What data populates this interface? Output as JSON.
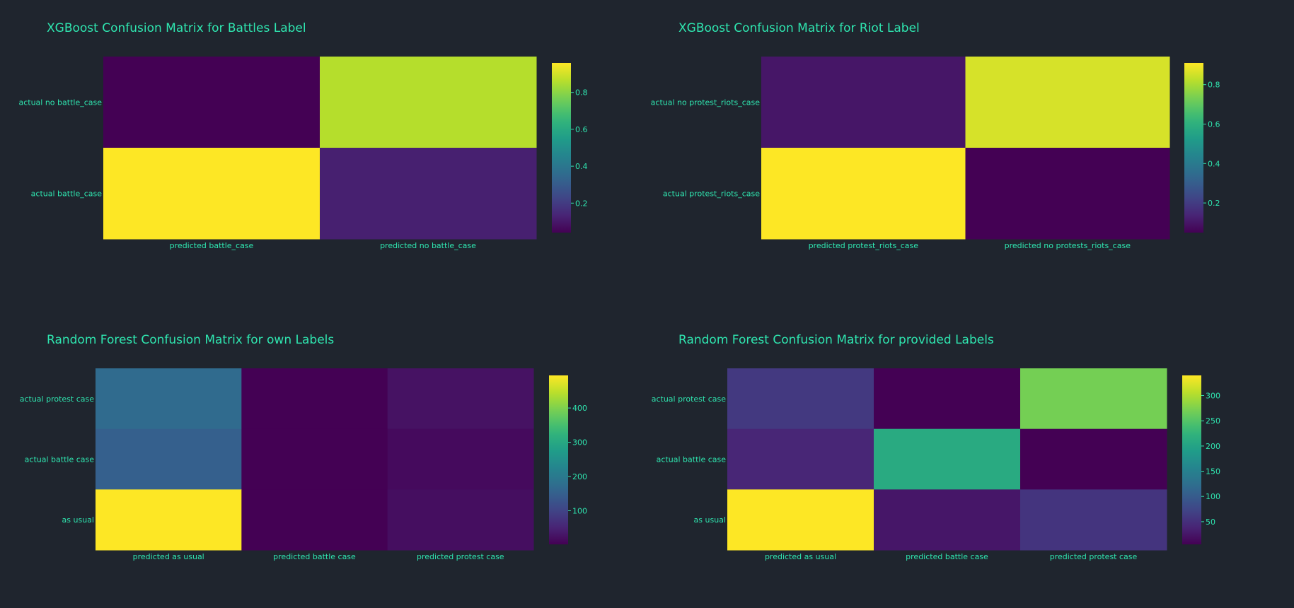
{
  "theme": {
    "background": "#1f252e",
    "text_color": "#2fe6b0",
    "colorscale": "Viridis"
  },
  "chart_data": [
    {
      "type": "heatmap",
      "title": "XGBoost Confusion Matrix for Battles Label",
      "x": [
        "predicted battle_case",
        "predicted no battle_case"
      ],
      "y": [
        "actual no battle_case",
        "actual battle_case"
      ],
      "z": [
        [
          0.04,
          0.86
        ],
        [
          0.96,
          0.12
        ]
      ],
      "zmin": 0.04,
      "zmax": 0.96,
      "colorbar_ticks": [
        0.2,
        0.4,
        0.6,
        0.8
      ],
      "colorbar_ticklabels": [
        "0.2",
        "0.4",
        "0.6",
        "0.8"
      ]
    },
    {
      "type": "heatmap",
      "title": "XGBoost Confusion Matrix for Riot Label",
      "x": [
        "predicted protest_riots_case",
        "predicted no protests_riots_case"
      ],
      "y": [
        "actual no protest_riots_case",
        "actual protest_riots_case"
      ],
      "z": [
        [
          0.1,
          0.86
        ],
        [
          0.91,
          0.05
        ]
      ],
      "zmin": 0.05,
      "zmax": 0.91,
      "colorbar_ticks": [
        0.2,
        0.4,
        0.6,
        0.8
      ],
      "colorbar_ticklabels": [
        "0.2",
        "0.4",
        "0.6",
        "0.8"
      ]
    },
    {
      "type": "heatmap",
      "title": "Random Forest Confusion Matrix for own Labels",
      "x": [
        "predicted as usual",
        "predicted battle case",
        "predicted protest case"
      ],
      "y": [
        "actual protest case",
        "actual battle case",
        "as usual"
      ],
      "z": [
        [
          170,
          2,
          25
        ],
        [
          150,
          2,
          15
        ],
        [
          495,
          2,
          20
        ]
      ],
      "zmin": 2,
      "zmax": 495,
      "colorbar_ticks": [
        100,
        200,
        300,
        400
      ],
      "colorbar_ticklabels": [
        "100",
        "200",
        "300",
        "400"
      ]
    },
    {
      "type": "heatmap",
      "title": "Random Forest Confusion Matrix for provided Labels",
      "x": [
        "predicted as usual",
        "predicted battle case",
        "predicted protest case"
      ],
      "y": [
        "actual protest case",
        "actual battle case",
        "as usual"
      ],
      "z": [
        [
          60,
          5,
          270
        ],
        [
          40,
          210,
          5
        ],
        [
          340,
          25,
          55
        ]
      ],
      "zmin": 5,
      "zmax": 340,
      "colorbar_ticks": [
        50,
        100,
        150,
        200,
        250,
        300
      ],
      "colorbar_ticklabels": [
        "50",
        "100",
        "150",
        "200",
        "250",
        "300"
      ]
    }
  ]
}
